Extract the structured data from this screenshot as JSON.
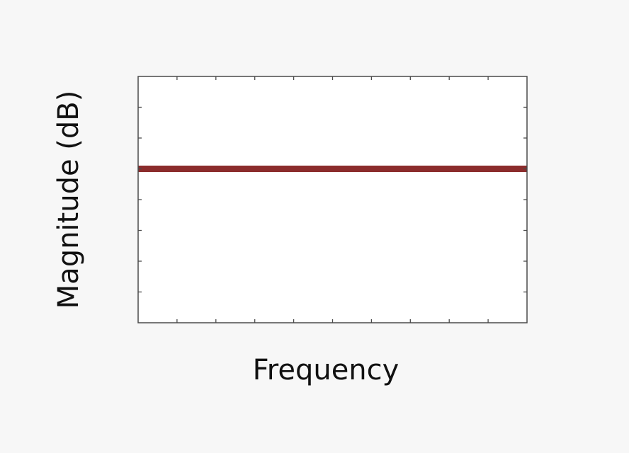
{
  "chart_data": {
    "type": "line",
    "title": "",
    "xlabel": "Frequency",
    "ylabel": "Magnitude (dB)",
    "xlim": [
      0,
      10
    ],
    "ylim": [
      0,
      8
    ],
    "grid": false,
    "x_ticks": [
      1,
      2,
      3,
      4,
      5,
      6,
      7,
      8,
      9
    ],
    "y_ticks": [
      1,
      2,
      3,
      4,
      5,
      6,
      7
    ],
    "series": [
      {
        "x": [
          0,
          10
        ],
        "y": [
          5,
          5
        ],
        "color": "#8b2c2c"
      }
    ]
  }
}
